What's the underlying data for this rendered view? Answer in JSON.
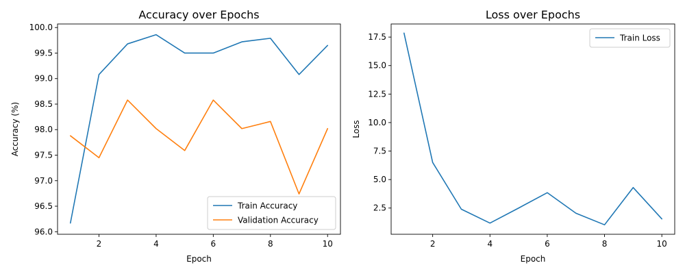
{
  "chart_data": [
    {
      "type": "line",
      "title": "Accuracy over Epochs",
      "xlabel": "Epoch",
      "ylabel": "Accuracy (%)",
      "x": [
        1,
        2,
        3,
        4,
        5,
        6,
        7,
        8,
        9,
        10
      ],
      "xticks": [
        2,
        4,
        6,
        8,
        10
      ],
      "xlim": [
        0.55,
        10.45
      ],
      "yticks": [
        96.0,
        96.5,
        97.0,
        97.5,
        98.0,
        98.5,
        99.0,
        99.5,
        100.0
      ],
      "ytick_labels": [
        "96.0",
        "96.5",
        "97.0",
        "97.5",
        "98.0",
        "98.5",
        "99.0",
        "99.5",
        "100.0"
      ],
      "ylim": [
        95.95,
        100.07
      ],
      "grid": false,
      "legend_position": "lower-right",
      "series": [
        {
          "name": "Train Accuracy",
          "color": "#1f77b4",
          "values": [
            96.17,
            99.08,
            99.68,
            99.86,
            99.5,
            99.5,
            99.72,
            99.79,
            99.08,
            99.65
          ]
        },
        {
          "name": "Validation Accuracy",
          "color": "#ff7f0e",
          "values": [
            97.88,
            97.45,
            98.58,
            98.02,
            97.59,
            98.58,
            98.02,
            98.16,
            96.74,
            98.02
          ]
        }
      ]
    },
    {
      "type": "line",
      "title": "Loss over Epochs",
      "xlabel": "Epoch",
      "ylabel": "Loss",
      "x": [
        1,
        2,
        3,
        4,
        5,
        6,
        7,
        8,
        9,
        10
      ],
      "xticks": [
        2,
        4,
        6,
        8,
        10
      ],
      "xlim": [
        0.55,
        10.45
      ],
      "yticks": [
        2.5,
        5.0,
        7.5,
        10.0,
        12.5,
        15.0,
        17.5
      ],
      "ytick_labels": [
        "2.5",
        "5.0",
        "7.5",
        "10.0",
        "12.5",
        "15.0",
        "17.5"
      ],
      "ylim": [
        0.2,
        18.65
      ],
      "grid": false,
      "legend_position": "upper-right",
      "series": [
        {
          "name": "Train Loss",
          "color": "#1f77b4",
          "values": [
            17.85,
            6.5,
            2.4,
            1.18,
            2.5,
            3.85,
            2.05,
            1.03,
            4.3,
            1.55
          ]
        }
      ]
    }
  ]
}
